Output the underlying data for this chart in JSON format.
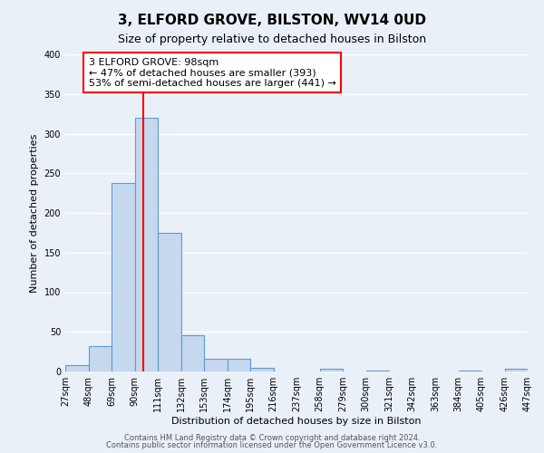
{
  "title": "3, ELFORD GROVE, BILSTON, WV14 0UD",
  "subtitle": "Size of property relative to detached houses in Bilston",
  "xlabel": "Distribution of detached houses by size in Bilston",
  "ylabel": "Number of detached properties",
  "bin_edges": [
    27,
    48,
    69,
    90,
    111,
    132,
    153,
    174,
    195,
    216,
    237,
    258,
    279,
    300,
    321,
    342,
    363,
    384,
    405,
    426,
    447
  ],
  "bar_heights": [
    8,
    32,
    238,
    320,
    175,
    46,
    16,
    16,
    5,
    0,
    0,
    3,
    0,
    1,
    0,
    0,
    0,
    1,
    0,
    3
  ],
  "bar_color": "#c5d8ed",
  "bar_edge_color": "#5b9bd5",
  "vline_x": 98,
  "vline_color": "red",
  "annotation_line1": "3 ELFORD GROVE: 98sqm",
  "annotation_line2": "← 47% of detached houses are smaller (393)",
  "annotation_line3": "53% of semi-detached houses are larger (441) →",
  "ylim": [
    0,
    400
  ],
  "yticks": [
    0,
    50,
    100,
    150,
    200,
    250,
    300,
    350,
    400
  ],
  "tick_labels": [
    "27sqm",
    "48sqm",
    "69sqm",
    "90sqm",
    "111sqm",
    "132sqm",
    "153sqm",
    "174sqm",
    "195sqm",
    "216sqm",
    "237sqm",
    "258sqm",
    "279sqm",
    "300sqm",
    "321sqm",
    "342sqm",
    "363sqm",
    "384sqm",
    "405sqm",
    "426sqm",
    "447sqm"
  ],
  "footer_line1": "Contains HM Land Registry data © Crown copyright and database right 2024.",
  "footer_line2": "Contains public sector information licensed under the Open Government Licence v3.0.",
  "bg_color": "#eaf0f8",
  "plot_bg_color": "#eaf0f8",
  "grid_color": "#ffffff",
  "title_fontsize": 11,
  "subtitle_fontsize": 9,
  "ylabel_fontsize": 8,
  "xlabel_fontsize": 8,
  "tick_fontsize": 7,
  "footer_fontsize": 6
}
